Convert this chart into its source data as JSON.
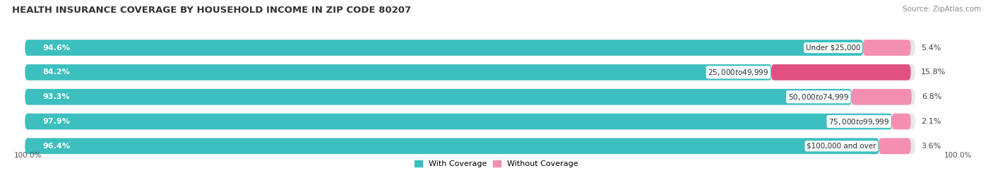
{
  "title": "HEALTH INSURANCE COVERAGE BY HOUSEHOLD INCOME IN ZIP CODE 80207",
  "source": "Source: ZipAtlas.com",
  "categories": [
    "Under $25,000",
    "$25,000 to $49,999",
    "$50,000 to $74,999",
    "$75,000 to $99,999",
    "$100,000 and over"
  ],
  "with_coverage": [
    94.6,
    84.2,
    93.3,
    97.9,
    96.4
  ],
  "without_coverage": [
    5.4,
    15.8,
    6.8,
    2.1,
    3.6
  ],
  "color_with": "#3dbfbf",
  "color_without": "#f48fb1",
  "color_without_row2": "#e05080",
  "bar_bg_color": "#e8e8e8",
  "title_fontsize": 9.5,
  "label_fontsize": 8,
  "cat_fontsize": 7.5,
  "legend_fontsize": 8,
  "source_fontsize": 7.5,
  "bar_height": 0.62,
  "x_left_label": "100.0%",
  "x_right_label": "100.0%",
  "background_color": "#ffffff"
}
